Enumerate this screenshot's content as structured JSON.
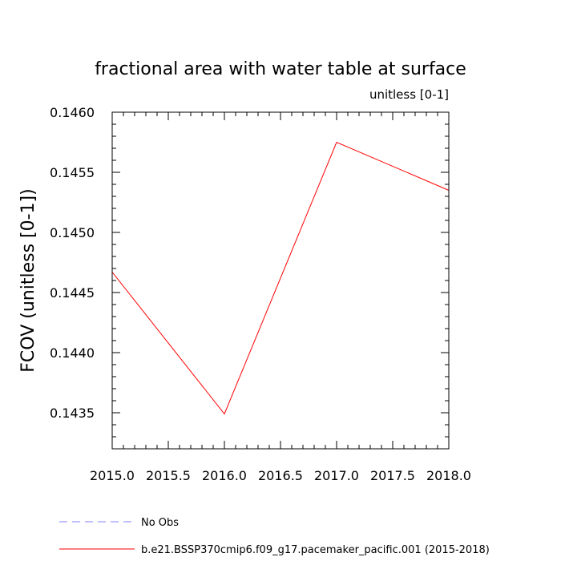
{
  "chart_data": {
    "type": "line",
    "title": "fractional area with water table at surface",
    "units": "unitless [0-1]",
    "xlabel": "",
    "ylabel": "FCOV  (unitless [0-1])",
    "xlim": [
      2015.0,
      2018.0
    ],
    "ylim": [
      0.1432,
      0.146
    ],
    "x_ticks": [
      "2015.0",
      "2015.5",
      "2016.0",
      "2016.5",
      "2017.0",
      "2017.5",
      "2018.0"
    ],
    "x_tick_values": [
      2015.0,
      2015.5,
      2016.0,
      2016.5,
      2017.0,
      2017.5,
      2018.0
    ],
    "y_ticks": [
      "0.1435",
      "0.1440",
      "0.1445",
      "0.1450",
      "0.1455",
      "0.1460"
    ],
    "y_tick_values": [
      0.1435,
      0.144,
      0.1445,
      0.145,
      0.1455,
      0.146
    ],
    "grid": false,
    "legend_position": "bottom-left",
    "series": [
      {
        "name": "b.e21.BSSP370cmip6.f09_g17.pacemaker_pacific.001 (2015-2018)",
        "color": "#ff0000",
        "dash": "solid",
        "x": [
          2015.0,
          2016.0,
          2017.0,
          2018.0
        ],
        "y": [
          0.14467,
          0.14349,
          0.14575,
          0.14535
        ]
      }
    ],
    "legend": [
      {
        "label": "No Obs",
        "color": "#8080ff",
        "dash": "dashed"
      },
      {
        "label": "b.e21.BSSP370cmip6.f09_g17.pacemaker_pacific.001 (2015-2018)",
        "color": "#ff0000",
        "dash": "solid"
      }
    ]
  }
}
